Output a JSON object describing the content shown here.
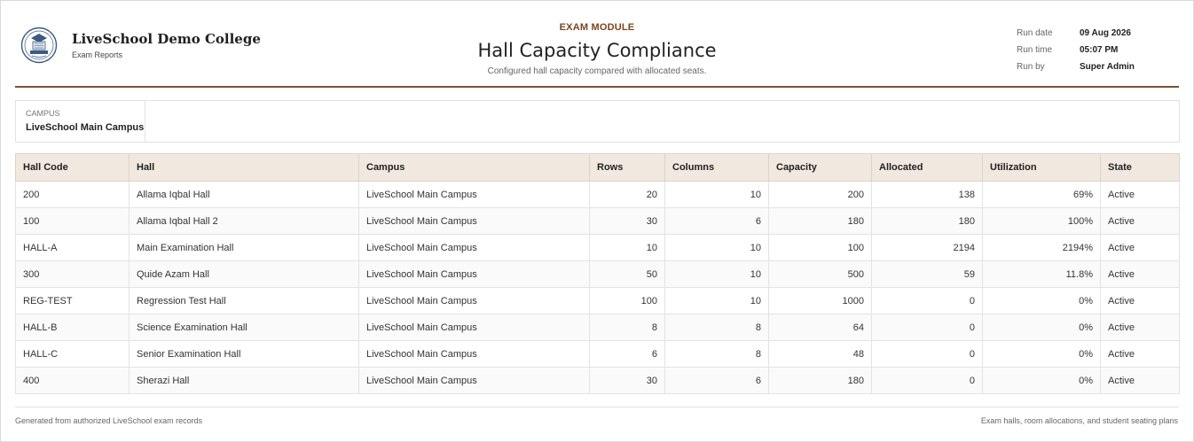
{
  "header": {
    "college_name": "LiveSchool Demo College",
    "college_sub": "Exam Reports",
    "module": "EXAM MODULE",
    "title": "Hall Capacity Compliance",
    "subtitle": "Configured hall capacity compared with allocated seats.",
    "logo_icon": "college-crest-icon"
  },
  "run_info": [
    {
      "label": "Run date",
      "value": "09 Aug 2026"
    },
    {
      "label": "Run time",
      "value": "05:07 PM"
    },
    {
      "label": "Run by",
      "value": "Super Admin"
    }
  ],
  "filter": {
    "label": "CAMPUS",
    "value": "LiveSchool Main Campus"
  },
  "table": {
    "columns": [
      "Hall Code",
      "Hall",
      "Campus",
      "Rows",
      "Columns",
      "Capacity",
      "Allocated",
      "Utilization",
      "State"
    ],
    "rows": [
      [
        "200",
        "Allama Iqbal Hall",
        "LiveSchool Main Campus",
        "20",
        "10",
        "200",
        "138",
        "69%",
        "Active"
      ],
      [
        "100",
        "Allama Iqbal Hall 2",
        "LiveSchool Main Campus",
        "30",
        "6",
        "180",
        "180",
        "100%",
        "Active"
      ],
      [
        "HALL-A",
        "Main Examination Hall",
        "LiveSchool Main Campus",
        "10",
        "10",
        "100",
        "2194",
        "2194%",
        "Active"
      ],
      [
        "300",
        "Quide Azam Hall",
        "LiveSchool Main Campus",
        "50",
        "10",
        "500",
        "59",
        "11.8%",
        "Active"
      ],
      [
        "REG-TEST",
        "Regression Test Hall",
        "LiveSchool Main Campus",
        "100",
        "10",
        "1000",
        "0",
        "0%",
        "Active"
      ],
      [
        "HALL-B",
        "Science Examination Hall",
        "LiveSchool Main Campus",
        "8",
        "8",
        "64",
        "0",
        "0%",
        "Active"
      ],
      [
        "HALL-C",
        "Senior Examination Hall",
        "LiveSchool Main Campus",
        "6",
        "8",
        "48",
        "0",
        "0%",
        "Active"
      ],
      [
        "400",
        "Sherazi Hall",
        "LiveSchool Main Campus",
        "30",
        "6",
        "180",
        "0",
        "0%",
        "Active"
      ]
    ]
  },
  "footer": {
    "left": "Generated from authorized LiveSchool exam records",
    "right": "Exam halls, room allocations, and student seating plans"
  },
  "colors": {
    "accent": "#7a4420",
    "divider": "#7a5234",
    "header_row_bg": "#f1e8df"
  }
}
